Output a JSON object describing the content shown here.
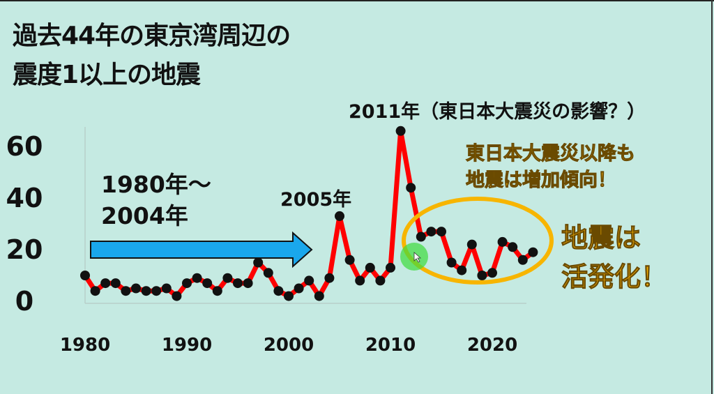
{
  "title_line1": "過去44年の東京湾周辺の",
  "title_line2": "震度1以上の地震",
  "annotations": {
    "peak_2011": "2011年（東日本大震災の影響？）",
    "peak_2005": "2005年",
    "period_line1": "1980年〜",
    "period_line2": "2004年",
    "trend_line1": "東日本大震災以降も",
    "trend_line2": "地震は増加傾向！",
    "active_line1": "地震は",
    "active_line2": "活発化！"
  },
  "colors": {
    "background": "#c5eae2",
    "line": "#ff0000",
    "marker": "#111111",
    "arrow": "#1aa7ec",
    "highlight": "#f5b000"
  },
  "chart_data": {
    "type": "line",
    "title": "過去44年の東京湾周辺の震度1以上の地震",
    "xlabel": "",
    "ylabel": "",
    "x": [
      1980,
      1981,
      1982,
      1983,
      1984,
      1985,
      1986,
      1987,
      1988,
      1989,
      1990,
      1991,
      1992,
      1993,
      1994,
      1995,
      1996,
      1997,
      1998,
      1999,
      2000,
      2001,
      2002,
      2003,
      2004,
      2005,
      2006,
      2007,
      2008,
      2009,
      2010,
      2011,
      2012,
      2013,
      2014,
      2015,
      2016,
      2017,
      2018,
      2019,
      2020,
      2021,
      2022,
      2023,
      2024
    ],
    "values": [
      10,
      4,
      7,
      7,
      4,
      5,
      4,
      4,
      5,
      2,
      7,
      9,
      7,
      4,
      9,
      7,
      7,
      15,
      11,
      4,
      2,
      5,
      8,
      2,
      9,
      33,
      16,
      8,
      13,
      8,
      13,
      66,
      44,
      25,
      27,
      27,
      15,
      12,
      22,
      10,
      11,
      23,
      21,
      16,
      19
    ],
    "xticks": [
      "1980",
      "1990",
      "2000",
      "2010",
      "2020"
    ],
    "yticks": [
      "0",
      "20",
      "40",
      "60"
    ],
    "xlim": [
      1980,
      2024
    ],
    "ylim": [
      0,
      66
    ],
    "grid": false
  }
}
